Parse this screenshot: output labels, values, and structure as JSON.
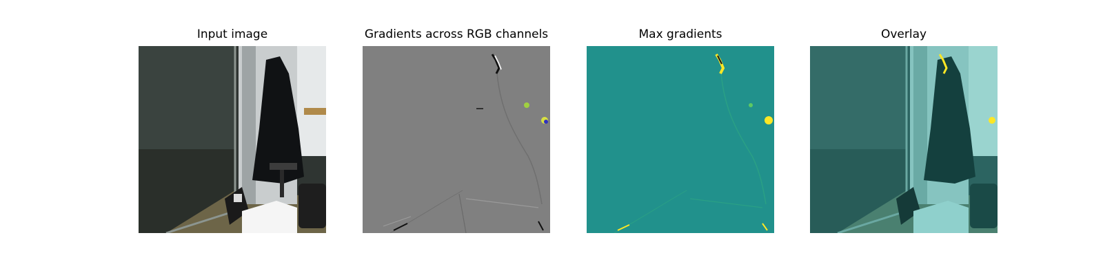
{
  "figure": {
    "panels": [
      {
        "title": "Input image"
      },
      {
        "title": "Gradients across RGB channels"
      },
      {
        "title": "Max gradients"
      },
      {
        "title": "Overlay"
      }
    ]
  },
  "colors": {
    "gradient_background": "#808080",
    "max_gradient_background": "#21918c",
    "highlight_yellow": "#fde725",
    "overlay_tint": "#8fd0cc"
  }
}
